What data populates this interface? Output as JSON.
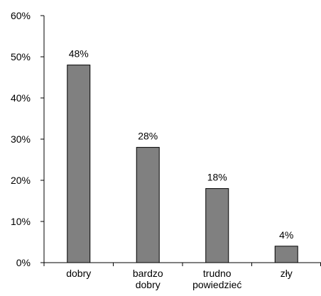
{
  "chart_data": {
    "type": "bar",
    "title": "",
    "xlabel": "",
    "ylabel": "",
    "categories": [
      [
        "dobry"
      ],
      [
        "bardzo",
        "dobry"
      ],
      [
        "trudno",
        "powiedzieć"
      ],
      [
        "zły"
      ]
    ],
    "values": [
      48,
      28,
      18,
      4
    ],
    "data_labels": [
      "48%",
      "28%",
      "18%",
      "4%"
    ],
    "ylim": [
      0,
      60
    ],
    "yticks": [
      0,
      10,
      20,
      30,
      40,
      50,
      60
    ],
    "ytick_labels": [
      "0%",
      "10%",
      "20%",
      "30%",
      "40%",
      "50%",
      "60%"
    ],
    "bar_color": "#808080",
    "grid": false,
    "legend": "none"
  }
}
